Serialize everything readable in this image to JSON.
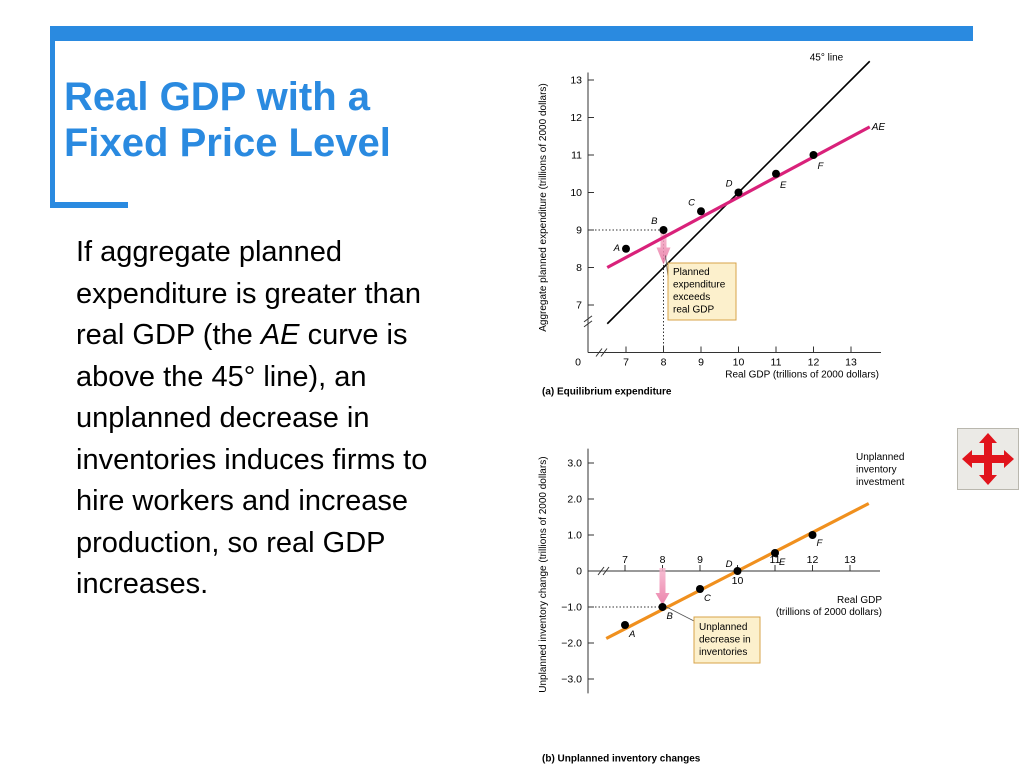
{
  "slide": {
    "title_line1": "Real GDP with a",
    "title_line2": "Fixed Price Level",
    "body_part1": "If aggregate planned expenditure is greater than real GDP (the ",
    "body_italic": "AE",
    "body_part2": " curve is above the 45° line), an unplanned decrease in inventories induces firms to hire workers and increase production, so real GDP increases."
  },
  "nav": {
    "icon": "four-way-arrow-icon",
    "color": "#e1141c"
  },
  "colors": {
    "accent": "#2a8ae0",
    "ae_line": "#d9217a",
    "inventory_line": "#f0901e",
    "callout_fill": "#fcf0cc",
    "callout_border": "#d7a34a"
  },
  "chart_data": [
    {
      "type": "line",
      "subtitle": "(a) Equilibrium expenditure",
      "xlabel": "Real GDP (trillions of 2000 dollars)",
      "ylabel": "Aggregate planned expenditure (trillions of 2000 dollars)",
      "xlim": [
        6,
        14
      ],
      "ylim": [
        6,
        13.5
      ],
      "axis_break": true,
      "x_ticks": [
        7,
        8,
        9,
        10,
        11,
        12,
        13
      ],
      "y_ticks": [
        7,
        8,
        9,
        10,
        11,
        12,
        13
      ],
      "x_zero_label": "0",
      "series": [
        {
          "name": "45° line",
          "color": "#000000",
          "x": [
            6.5,
            13.5
          ],
          "y": [
            6.5,
            13.5
          ]
        },
        {
          "name": "AE",
          "color": "#d9217a",
          "x": [
            6.5,
            13.5
          ],
          "y": [
            8.0,
            11.75
          ]
        }
      ],
      "points": [
        {
          "label": "A",
          "x": 7,
          "y": 8.5
        },
        {
          "label": "B",
          "x": 8,
          "y": 9
        },
        {
          "label": "C",
          "x": 9,
          "y": 9.5
        },
        {
          "label": "D",
          "x": 10,
          "y": 10
        },
        {
          "label": "E",
          "x": 11,
          "y": 10.5
        },
        {
          "label": "F",
          "x": 12,
          "y": 11
        }
      ],
      "annotation": [
        "Planned",
        "expenditure",
        "exceeds",
        "real GDP"
      ]
    },
    {
      "type": "line",
      "subtitle": "(b) Unplanned inventory changes",
      "xlabel_line1": "Real GDP",
      "xlabel_line2": "(trillions of 2000 dollars)",
      "ylabel": "Unplanned inventory change (trillions of 2000 dollars)",
      "xlim": [
        6,
        14
      ],
      "ylim": [
        -3.5,
        3.5
      ],
      "axis_break": true,
      "x_ticks": [
        7,
        8,
        9,
        10,
        11,
        12,
        13
      ],
      "y_ticks": [
        "3.0",
        "2.0",
        "1.0",
        "0",
        "−1.0",
        "−2.0",
        "−3.0"
      ],
      "y_tick_values": [
        3,
        2,
        1,
        0,
        -1,
        -2,
        -3
      ],
      "series": [
        {
          "name": "Unplanned inventory investment",
          "color": "#f0901e",
          "x": [
            6.5,
            13.5
          ],
          "y": [
            -1.875,
            1.875
          ]
        }
      ],
      "series_label": [
        "Unplanned",
        "inventory",
        "investment"
      ],
      "points": [
        {
          "label": "A",
          "x": 7,
          "y": -1.5
        },
        {
          "label": "B",
          "x": 8,
          "y": -1
        },
        {
          "label": "C",
          "x": 9,
          "y": -0.5
        },
        {
          "label": "D",
          "x": 10,
          "y": 0
        },
        {
          "label": "E",
          "x": 11,
          "y": 0.5
        },
        {
          "label": "F",
          "x": 12,
          "y": 1
        }
      ],
      "annotation": [
        "Unplanned",
        "decrease in",
        "inventories"
      ]
    }
  ]
}
